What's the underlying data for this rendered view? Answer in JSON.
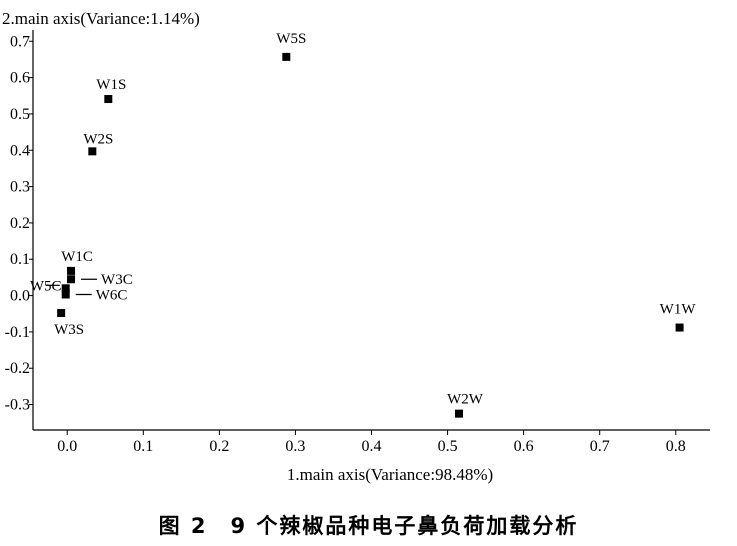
{
  "chart_data": {
    "type": "scatter",
    "xlabel": "1.main axis(Variance:98.48%)",
    "ylabel": "2.main axis(Variance:1.14%)",
    "xlim": [
      -0.045,
      0.845
    ],
    "ylim": [
      -0.37,
      0.72
    ],
    "xticks": [
      0.0,
      0.1,
      0.2,
      0.3,
      0.4,
      0.5,
      0.6,
      0.7,
      0.8
    ],
    "xtick_labels": [
      "0.0",
      "0.1",
      "0.2",
      "0.3",
      "0.4",
      "0.5",
      "0.6",
      "0.7",
      "0.8"
    ],
    "yticks": [
      0.7,
      0.6,
      0.5,
      0.4,
      0.3,
      0.2,
      0.1,
      0.0,
      -0.1,
      -0.2,
      -0.3
    ],
    "ytick_labels": [
      "0.7",
      "0.6",
      "0.5",
      "0.4",
      "0.3",
      "0.2",
      "0.1",
      "0.0",
      "-0.1",
      "-0.2",
      "-0.3"
    ],
    "grid": false,
    "points": [
      {
        "label": "W5S",
        "x": 0.288,
        "y": 0.657
      },
      {
        "label": "W1S",
        "x": 0.054,
        "y": 0.541
      },
      {
        "label": "W2S",
        "x": 0.033,
        "y": 0.397
      },
      {
        "label": "W1C",
        "x": 0.005,
        "y": 0.068
      },
      {
        "label": "W3C",
        "x": 0.005,
        "y": 0.045
      },
      {
        "label": "W5C",
        "x": -0.002,
        "y": 0.02
      },
      {
        "label": "W6C",
        "x": -0.002,
        "y": 0.003
      },
      {
        "label": "W3S",
        "x": -0.008,
        "y": -0.048
      },
      {
        "label": "W1W",
        "x": 0.805,
        "y": -0.088
      },
      {
        "label": "W2W",
        "x": 0.515,
        "y": -0.325
      }
    ]
  },
  "caption": "图 2　9 个辣椒品种电子鼻负荷加载分析"
}
